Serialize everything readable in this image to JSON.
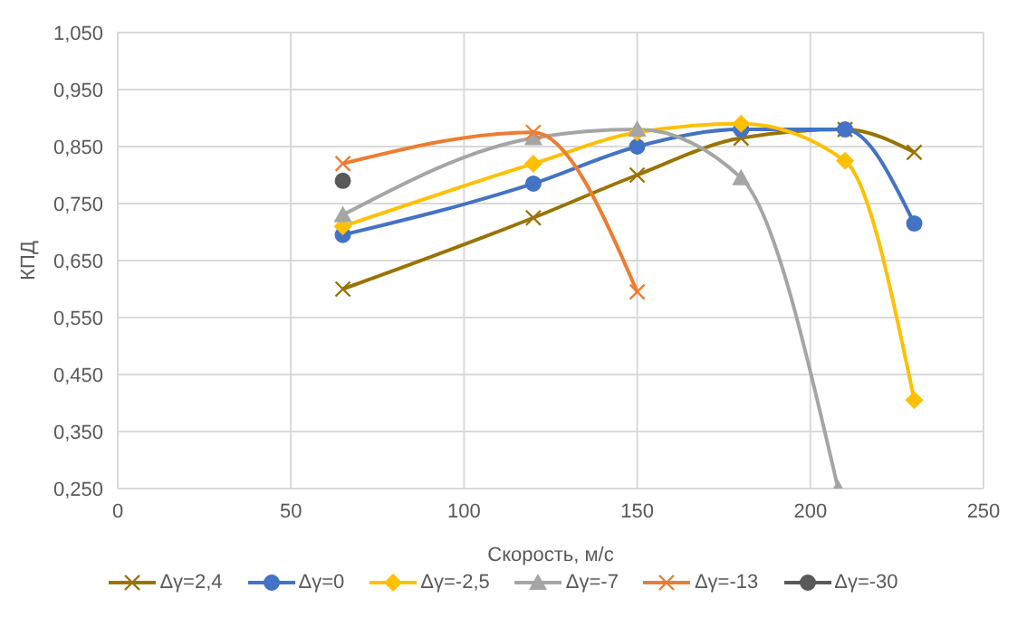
{
  "chart_data": {
    "type": "line",
    "xlabel": "Скорость, м/с",
    "ylabel": "КПД",
    "xlim": [
      0,
      250
    ],
    "xticks": [
      0,
      50,
      100,
      150,
      200,
      250
    ],
    "ylim": [
      0.25,
      1.05
    ],
    "yticks": [
      {
        "value": 0.25,
        "label": "0,250"
      },
      {
        "value": 0.35,
        "label": "0,350"
      },
      {
        "value": 0.45,
        "label": "0,450"
      },
      {
        "value": 0.55,
        "label": "0,550"
      },
      {
        "value": 0.65,
        "label": "0,650"
      },
      {
        "value": 0.75,
        "label": "0,750"
      },
      {
        "value": 0.85,
        "label": "0,850"
      },
      {
        "value": 0.95,
        "label": "0,950"
      },
      {
        "value": 1.05,
        "label": "1,050"
      }
    ],
    "grid": true,
    "legend": "bottom",
    "series": [
      {
        "name": "Δγ=2,4",
        "color": "#997300",
        "marker": "cross",
        "x": [
          65,
          120,
          150,
          180,
          210,
          230
        ],
        "values": [
          0.6,
          0.725,
          0.8,
          0.865,
          0.88,
          0.84
        ]
      },
      {
        "name": "Δγ=0",
        "color": "#4472c4",
        "marker": "circle",
        "x": [
          65,
          120,
          150,
          180,
          210,
          230
        ],
        "values": [
          0.695,
          0.785,
          0.85,
          0.88,
          0.88,
          0.715
        ]
      },
      {
        "name": "Δγ=-2,5",
        "color": "#ffc000",
        "marker": "diamond",
        "x": [
          65,
          120,
          150,
          180,
          210,
          230
        ],
        "values": [
          0.71,
          0.82,
          0.875,
          0.89,
          0.825,
          0.405
        ]
      },
      {
        "name": "Δγ=-7",
        "color": "#a5a5a5",
        "marker": "triangle",
        "x": [
          65,
          120,
          150,
          180,
          208
        ],
        "values": [
          0.73,
          0.865,
          0.88,
          0.795,
          0.25
        ]
      },
      {
        "name": "Δγ=-13",
        "color": "#ed7d31",
        "marker": "cross",
        "x": [
          65,
          120,
          150
        ],
        "values": [
          0.82,
          0.875,
          0.595
        ]
      },
      {
        "name": "Δγ=-30",
        "color": "#595959",
        "marker": "circle",
        "x": [
          65
        ],
        "values": [
          0.79
        ]
      }
    ]
  }
}
